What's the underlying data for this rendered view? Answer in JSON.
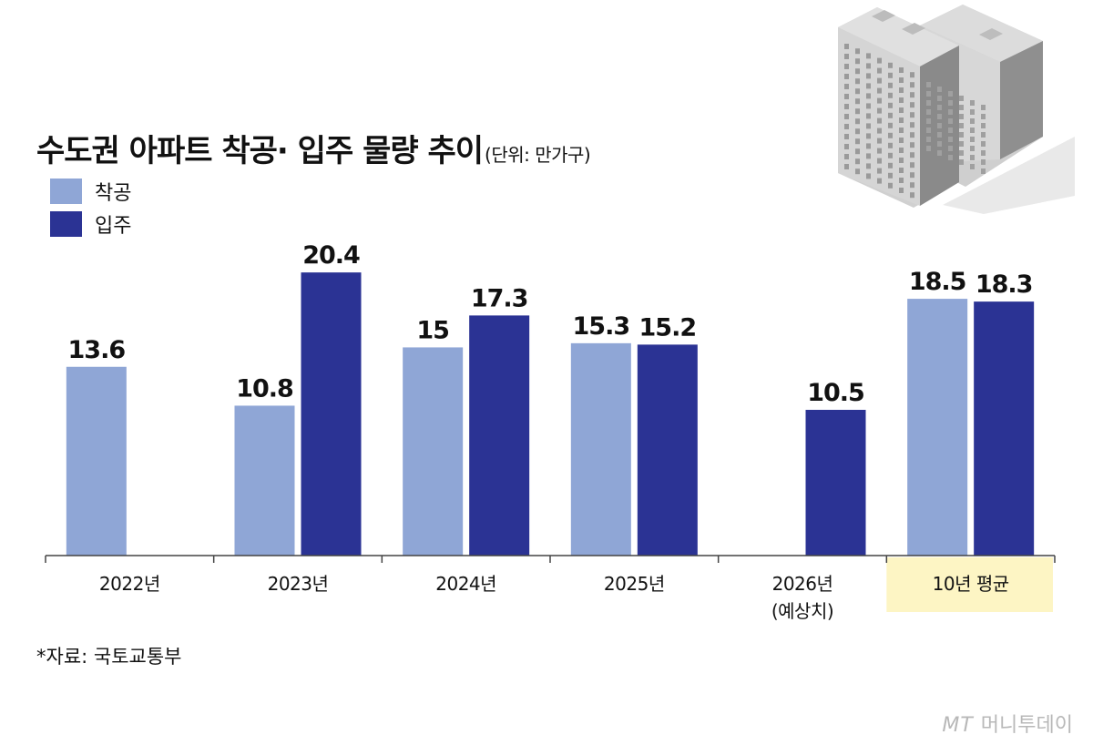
{
  "title": "수도권 아파트 착공· 입주 물량 추이",
  "unit": "(단위: 만가구)",
  "source": "*자료: 국토교통부",
  "brand": "MT",
  "brand_name": "머니투데이",
  "colors": {
    "start": "#8fa6d6",
    "move_in": "#2b3394",
    "highlight": "#fdf5c4",
    "axis": "#444444"
  },
  "chart_data": {
    "type": "bar",
    "categories": [
      "2022년",
      "2023년",
      "2024년",
      "2025년",
      "2026년\n(예상치)",
      "10년 평균"
    ],
    "series": [
      {
        "name": "착공",
        "values": [
          13.6,
          10.8,
          15,
          15.3,
          null,
          18.5
        ]
      },
      {
        "name": "입주",
        "values": [
          null,
          20.4,
          17.3,
          15.2,
          10.5,
          18.3
        ]
      }
    ],
    "value_labels": [
      [
        "13.6",
        "10.8",
        "15",
        "15.3",
        null,
        "18.5"
      ],
      [
        null,
        "20.4",
        "17.3",
        "15.2",
        "10.5",
        "18.3"
      ]
    ],
    "ylim": [
      0,
      21
    ],
    "highlight_category": "10년 평균",
    "legend": "top-left",
    "grid": false
  }
}
